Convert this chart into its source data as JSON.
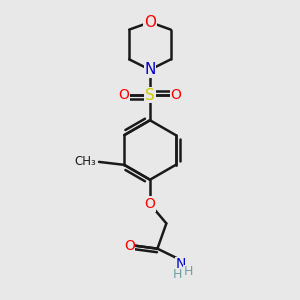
{
  "background_color": "#e8e8e8",
  "line_color": "#1a1a1a",
  "bond_width": 1.8,
  "colors": {
    "O": "#ff0000",
    "N": "#0000cc",
    "S": "#cccc00",
    "C": "#1a1a1a",
    "H": "#6fa0a0"
  },
  "figsize": [
    3.0,
    3.0
  ],
  "dpi": 100
}
